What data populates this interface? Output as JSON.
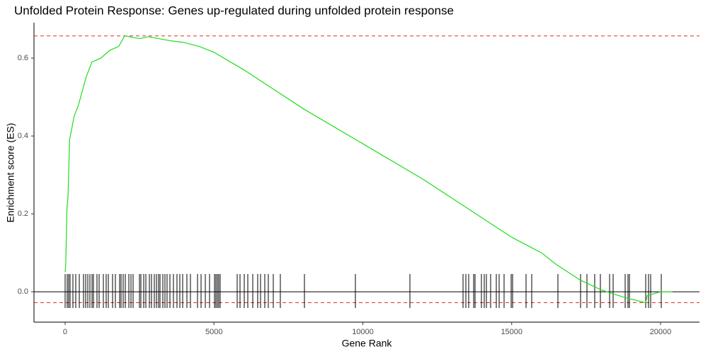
{
  "chart_data": {
    "type": "gsea",
    "title": "Unfolded Protein Response: Genes up-regulated during unfolded protein response",
    "x_label": "Gene Rank",
    "y_label": "Enrichment score (ES)",
    "xlim": [
      -1046,
      21308
    ],
    "ylim": [
      -0.078,
      0.691
    ],
    "xticks": [
      0,
      5000,
      10000,
      15000,
      20000
    ],
    "yticks": [
      {
        "value": 0,
        "label": "0.0"
      },
      0.2,
      0.4,
      0.6
    ],
    "grid": false,
    "series": [
      {
        "color": "#1fdc1f",
        "x": [
          0,
          20,
          60,
          100,
          150,
          300,
          450,
          700,
          900,
          1200,
          1500,
          1800,
          2000,
          2500,
          2800,
          3500,
          4000,
          4500,
          5000,
          6000,
          7000,
          8000,
          10000,
          12000,
          14000,
          15000,
          16000,
          16500,
          17300,
          18000,
          18800,
          19500,
          19550,
          20000,
          20400
        ],
        "values": [
          0.05,
          0.07,
          0.21,
          0.25,
          0.39,
          0.45,
          0.48,
          0.55,
          0.59,
          0.6,
          0.62,
          0.63,
          0.657,
          0.65,
          0.655,
          0.645,
          0.64,
          0.63,
          0.615,
          0.57,
          0.52,
          0.47,
          0.38,
          0.29,
          0.19,
          0.14,
          0.1,
          0.07,
          0.03,
          0.005,
          -0.015,
          -0.028,
          -0.01,
          0.0,
          0.0
        ]
      }
    ],
    "hits": [
      0,
      71,
      119,
      166,
      262,
      357,
      476,
      618,
      690,
      761,
      832,
      904,
      951,
      1070,
      1142,
      1284,
      1379,
      1451,
      1593,
      1688,
      1831,
      1879,
      1950,
      2021,
      2140,
      2212,
      2283,
      2497,
      2545,
      2640,
      2711,
      2830,
      2901,
      2996,
      3068,
      3139,
      3187,
      3282,
      3353,
      3424,
      3520,
      3638,
      3757,
      3853,
      3948,
      4090,
      4209,
      4447,
      4566,
      4709,
      4851,
      5018,
      5065,
      5113,
      5160,
      5208,
      5779,
      5874,
      6017,
      6136,
      6302,
      6468,
      6564,
      6706,
      6825,
      6992,
      7229,
      8038,
      9750,
      11581,
      13365,
      13460,
      13555,
      13722,
      13769,
      13983,
      14078,
      14150,
      14292,
      14483,
      14578,
      14744,
      14982,
      15030,
      15482,
      15672,
      16552,
      17313,
      17527,
      17788,
      17979,
      18288,
      18407,
      18811,
      18906,
      18954,
      19501,
      19596,
      19667,
      20024
    ],
    "es_max": 0.657,
    "es_min": -0.028,
    "dash_color": "#e0302f",
    "zero_line": 0
  }
}
